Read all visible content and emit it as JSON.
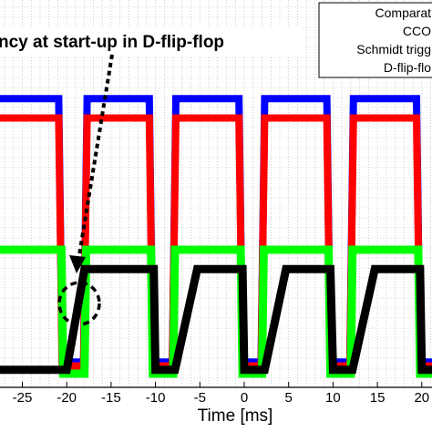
{
  "chart_data": {
    "type": "line",
    "title": "",
    "xlabel": "Time [ms]",
    "ylabel": "",
    "xlim": [
      -30,
      22
    ],
    "ylim": [
      -0.6,
      4.0
    ],
    "x_ticks": [
      -25,
      -20,
      -15,
      -10,
      -5,
      0,
      5,
      10,
      15,
      20
    ],
    "x_tick_labels": [
      "-25",
      "-20",
      "-15",
      "-10",
      "-5",
      "0",
      "5",
      "10",
      "15",
      "20"
    ],
    "grid": true,
    "legend_position": "top-right",
    "legend_entries": [
      "Comparat",
      "CCO",
      "Schmidt trigg",
      "D-flip-flo"
    ],
    "annotation": {
      "text": "ncy at start-up in D-flip-flop",
      "target": [
        -19.5,
        0.6
      ]
    },
    "series": [
      {
        "name": "Comparat",
        "color": "#0000ff",
        "points": [
          [
            -30,
            3.55
          ],
          [
            -20.9,
            3.55
          ],
          [
            -20.5,
            0.15
          ],
          [
            -18.1,
            0.15
          ],
          [
            -17.7,
            3.55
          ],
          [
            -10.7,
            3.55
          ],
          [
            -10.3,
            0.15
          ],
          [
            -8.1,
            0.15
          ],
          [
            -7.7,
            3.55
          ],
          [
            -0.6,
            3.55
          ],
          [
            -0.2,
            0.15
          ],
          [
            1.9,
            0.15
          ],
          [
            2.3,
            3.55
          ],
          [
            9.3,
            3.55
          ],
          [
            9.7,
            0.15
          ],
          [
            11.9,
            0.15
          ],
          [
            12.3,
            3.55
          ],
          [
            19.4,
            3.55
          ],
          [
            19.8,
            0.15
          ],
          [
            22,
            0.15
          ]
        ]
      },
      {
        "name": "CCO",
        "color": "#ff0000",
        "points": [
          [
            -30,
            3.3
          ],
          [
            -20.9,
            3.3
          ],
          [
            -20.5,
            0.1
          ],
          [
            -18.1,
            0.1
          ],
          [
            -17.7,
            3.3
          ],
          [
            -10.7,
            3.3
          ],
          [
            -10.3,
            0.1
          ],
          [
            -8.1,
            0.1
          ],
          [
            -7.7,
            3.3
          ],
          [
            -0.6,
            3.3
          ],
          [
            -0.2,
            0.1
          ],
          [
            1.9,
            0.1
          ],
          [
            2.3,
            3.3
          ],
          [
            9.3,
            3.3
          ],
          [
            9.7,
            0.1
          ],
          [
            11.9,
            0.1
          ],
          [
            12.3,
            3.3
          ],
          [
            19.4,
            3.3
          ],
          [
            19.8,
            0.1
          ],
          [
            22,
            0.1
          ]
        ]
      },
      {
        "name": "Schmidt trigg",
        "color": "#00ff00",
        "points": [
          [
            -30,
            1.6
          ],
          [
            -20.6,
            1.6
          ],
          [
            -20.4,
            0.0
          ],
          [
            -18.0,
            0.0
          ],
          [
            -17.8,
            1.6
          ],
          [
            -10.5,
            1.6
          ],
          [
            -10.3,
            0.0
          ],
          [
            -8.0,
            0.0
          ],
          [
            -7.8,
            1.6
          ],
          [
            -0.4,
            1.6
          ],
          [
            -0.2,
            0.0
          ],
          [
            2.0,
            0.0
          ],
          [
            2.2,
            1.6
          ],
          [
            9.5,
            1.6
          ],
          [
            9.7,
            0.0
          ],
          [
            12.0,
            0.0
          ],
          [
            12.2,
            1.6
          ],
          [
            19.6,
            1.6
          ],
          [
            19.8,
            0.0
          ],
          [
            22,
            0.0
          ]
        ]
      },
      {
        "name": "D-flip-flo",
        "color": "#000000",
        "points": [
          [
            -30,
            0.05
          ],
          [
            -20.9,
            0.05
          ],
          [
            -20.0,
            0.05
          ],
          [
            -18.0,
            1.35
          ],
          [
            -17.6,
            1.35
          ],
          [
            -10.2,
            1.35
          ],
          [
            -10.0,
            0.05
          ],
          [
            -7.8,
            0.05
          ],
          [
            -5.3,
            1.35
          ],
          [
            -0.2,
            1.35
          ],
          [
            0.0,
            0.05
          ],
          [
            2.3,
            0.05
          ],
          [
            4.7,
            1.35
          ],
          [
            9.7,
            1.35
          ],
          [
            10.0,
            0.05
          ],
          [
            12.2,
            0.05
          ],
          [
            14.7,
            1.35
          ],
          [
            19.8,
            1.35
          ],
          [
            20.0,
            0.05
          ],
          [
            22,
            0.05
          ]
        ]
      }
    ]
  }
}
